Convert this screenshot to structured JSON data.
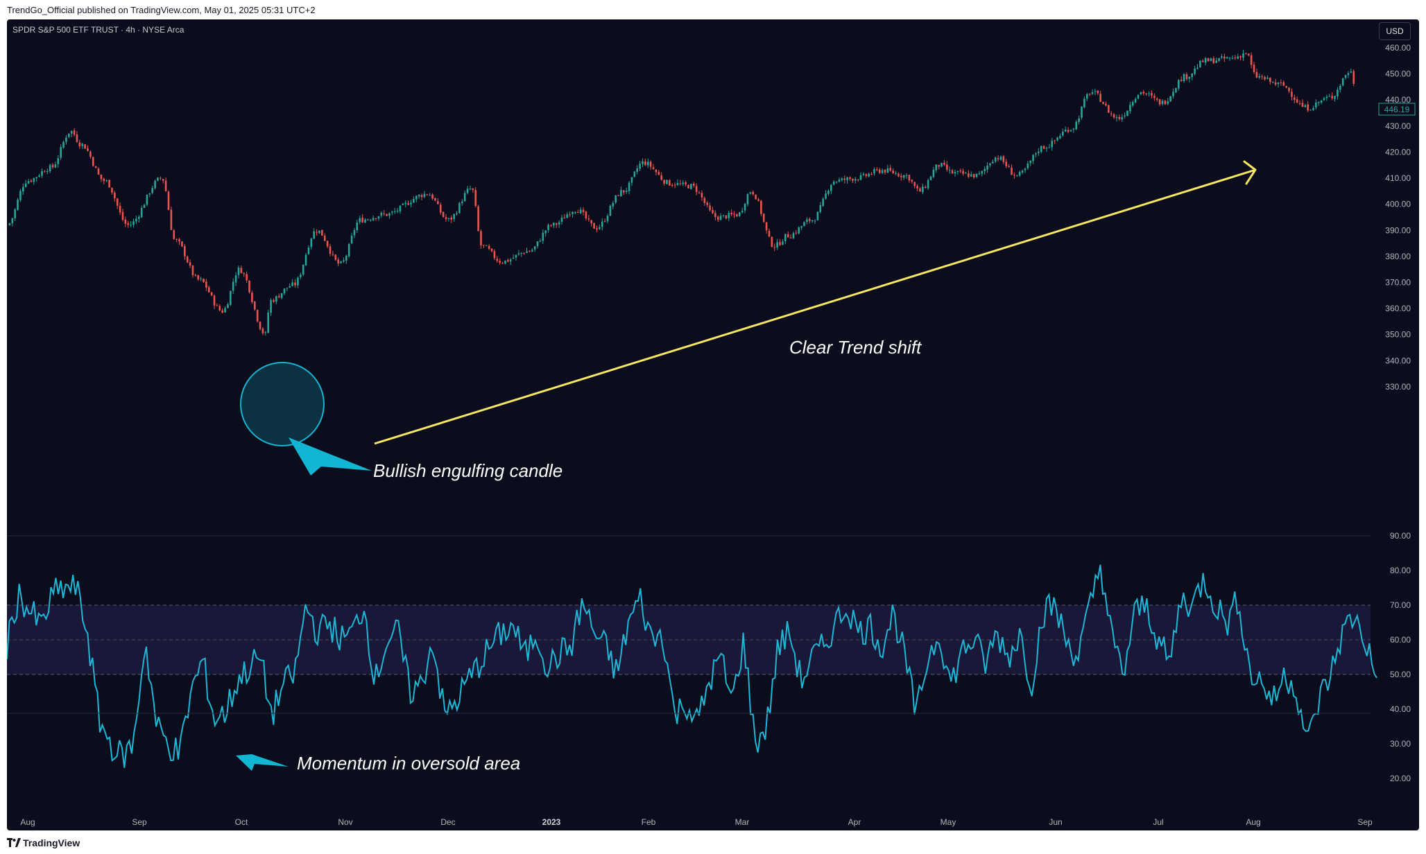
{
  "header": {
    "published_text": "TrendGo_Official published on TradingView.com, May 01, 2025 05:31 UTC+2"
  },
  "symbol": {
    "title": "SPDR S&P 500 ETF TRUST · 4h · NYSE Arca"
  },
  "currency": {
    "label": "USD"
  },
  "footer": {
    "brand": "TradingView",
    "logo_icon": "tradingview-logo-icon"
  },
  "colors": {
    "background": "#0b0c1c",
    "bull": "#26a69a",
    "bear": "#ef5350",
    "rsi_line": "#1fb7d6",
    "rsi_band": "#1a1838",
    "trend_arrow": "#f5e663",
    "annotation_accent": "#12b6d3",
    "annotation_text": "#ffffff"
  },
  "annotations": {
    "trend_shift": "Clear Trend shift",
    "bullish_engulfing": "Bullish engulfing candle",
    "oversold": "Momentum in oversold area"
  },
  "chart_data": [
    {
      "type": "candlestick",
      "title": "SPDR S&P 500 ETF TRUST · 4h · NYSE Arca",
      "y_ticks": [
        "460.00",
        "450.00",
        "440.00",
        "430.00",
        "420.00",
        "410.00",
        "400.00",
        "390.00",
        "380.00",
        "370.00",
        "360.00",
        "350.00",
        "340.00",
        "330.00"
      ],
      "ylim": [
        325,
        465
      ],
      "last_price": 446.19,
      "x_ticks": [
        {
          "label": "Aug",
          "bold": false
        },
        {
          "label": "Sep",
          "bold": false
        },
        {
          "label": "Oct",
          "bold": false
        },
        {
          "label": "Nov",
          "bold": false
        },
        {
          "label": "Dec",
          "bold": false
        },
        {
          "label": "2023",
          "bold": true
        },
        {
          "label": "Feb",
          "bold": false
        },
        {
          "label": "Mar",
          "bold": false
        },
        {
          "label": "Apr",
          "bold": false
        },
        {
          "label": "May",
          "bold": false
        },
        {
          "label": "Jun",
          "bold": false
        },
        {
          "label": "Jul",
          "bold": false
        },
        {
          "label": "Aug",
          "bold": false
        },
        {
          "label": "Sep",
          "bold": false
        }
      ],
      "path_approx": [
        [
          "Jul 28 2022",
          392
        ],
        [
          "Aug 03",
          409
        ],
        [
          "Aug 10",
          414
        ],
        [
          "Aug 16",
          428
        ],
        [
          "Aug 19",
          423
        ],
        [
          "Aug 26",
          409
        ],
        [
          "Sep 02",
          392
        ],
        [
          "Sep 12",
          410
        ],
        [
          "Sep 16",
          386
        ],
        [
          "Sep 23",
          371
        ],
        [
          "Sep 30",
          359
        ],
        [
          "Oct 05",
          375
        ],
        [
          "Oct 13",
          350
        ],
        [
          "Oct 14",
          363
        ],
        [
          "Oct 21",
          369
        ],
        [
          "Oct 28",
          390
        ],
        [
          "Nov 04",
          377
        ],
        [
          "Nov 10",
          394
        ],
        [
          "Nov 17",
          396
        ],
        [
          "Nov 30",
          404
        ],
        [
          "Dec 06",
          394
        ],
        [
          "Dec 13",
          406
        ],
        [
          "Dec 16",
          384
        ],
        [
          "Dec 22",
          378
        ],
        [
          "Dec 30",
          382
        ],
        [
          "Jan 06 2023",
          392
        ],
        [
          "Jan 13",
          398
        ],
        [
          "Jan 19",
          391
        ],
        [
          "Jan 27",
          405
        ],
        [
          "Feb 02",
          416
        ],
        [
          "Feb 10",
          408
        ],
        [
          "Feb 16",
          407
        ],
        [
          "Feb 24",
          395
        ],
        [
          "Mar 02",
          396
        ],
        [
          "Mar 06",
          405
        ],
        [
          "Mar 13",
          384
        ],
        [
          "Mar 17",
          388
        ],
        [
          "Mar 24",
          394
        ],
        [
          "Mar 31",
          409
        ],
        [
          "Apr 06",
          410
        ],
        [
          "Apr 14",
          413
        ],
        [
          "Apr 21",
          411
        ],
        [
          "Apr 25",
          405
        ],
        [
          "May 01",
          415
        ],
        [
          "May 05",
          412
        ],
        [
          "May 12",
          411
        ],
        [
          "May 18",
          418
        ],
        [
          "May 24",
          411
        ],
        [
          "Jun 01",
          422
        ],
        [
          "Jun 09",
          429
        ],
        [
          "Jun 15",
          443
        ],
        [
          "Jun 23",
          433
        ],
        [
          "Jun 30",
          443
        ],
        [
          "Jul 06",
          439
        ],
        [
          "Jul 13",
          449
        ],
        [
          "Jul 19",
          455
        ],
        [
          "Jul 27",
          456
        ],
        [
          "Jul 31",
          458
        ],
        [
          "Aug 03",
          449
        ],
        [
          "Aug 10",
          446
        ],
        [
          "Aug 18",
          437
        ],
        [
          "Aug 25",
          441
        ],
        [
          "Aug 31",
          451
        ],
        [
          "Sep 01",
          446.19
        ]
      ]
    },
    {
      "type": "line",
      "series": [
        {
          "values_approx": [
            58,
            73,
            68,
            64,
            73,
            75,
            75,
            62,
            37,
            30,
            26,
            30,
            60,
            35,
            30,
            27,
            45,
            54,
            37,
            39,
            48,
            52,
            55,
            38,
            47,
            50,
            70,
            62,
            65,
            60,
            62,
            70,
            48,
            60,
            62,
            45,
            47,
            60,
            38,
            42,
            48,
            53,
            58,
            62,
            64,
            55,
            62,
            52,
            56,
            58,
            71,
            62,
            58,
            50,
            65,
            72,
            60,
            62,
            38,
            42,
            36,
            48,
            55,
            42,
            60,
            30,
            35,
            58,
            62,
            48,
            55,
            58,
            65,
            70,
            62,
            64,
            58,
            68,
            55,
            38,
            55,
            62,
            47,
            57,
            60,
            53,
            62,
            55,
            62,
            47,
            68,
            70,
            60,
            55,
            68,
            82,
            60,
            50,
            68,
            70,
            60,
            53,
            72,
            70,
            78,
            70,
            65,
            72,
            50,
            48,
            42,
            50,
            46,
            30,
            43,
            50,
            62,
            67,
            60,
            48
          ]
        }
      ],
      "y_ticks": [
        "90.00",
        "80.00",
        "70.00",
        "60.00",
        "50.00",
        "40.00",
        "30.00",
        "20.00"
      ],
      "ylim": [
        16,
        90
      ],
      "levels": [
        70,
        50,
        30
      ]
    }
  ]
}
